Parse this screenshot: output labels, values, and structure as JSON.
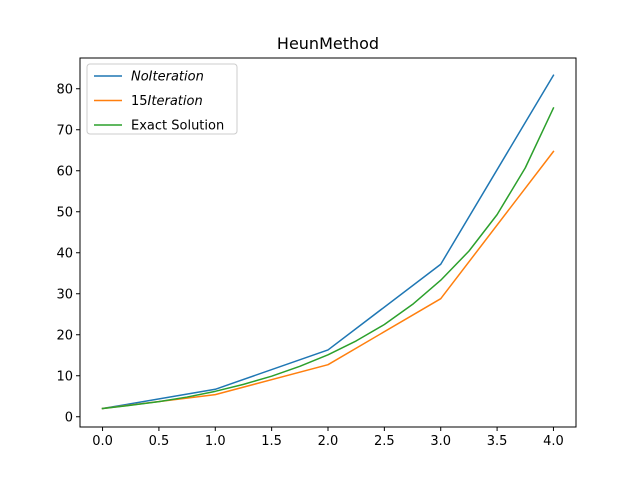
{
  "chart_data": {
    "type": "line",
    "title": "HeunMethod",
    "xlabel": "",
    "ylabel": "",
    "xlim": [
      -0.2,
      4.2
    ],
    "ylim": [
      -2.5,
      87.5
    ],
    "xticks": [
      0.0,
      0.5,
      1.0,
      1.5,
      2.0,
      2.5,
      3.0,
      3.5,
      4.0
    ],
    "xtick_labels": [
      "0.0",
      "0.5",
      "1.0",
      "1.5",
      "2.0",
      "2.5",
      "3.0",
      "3.5",
      "4.0"
    ],
    "yticks": [
      0,
      10,
      20,
      30,
      40,
      50,
      60,
      70,
      80
    ],
    "ytick_labels": [
      "0",
      "10",
      "20",
      "30",
      "40",
      "50",
      "60",
      "70",
      "80"
    ],
    "grid": false,
    "legend_position": "upper-left",
    "series": [
      {
        "name": "NoIteration",
        "legend_main": "",
        "legend_italic": "NoIteration",
        "color": "#1f77b4",
        "x": [
          0,
          1,
          2,
          3,
          4
        ],
        "y": [
          2.0,
          6.7,
          16.3,
          37.2,
          83.3
        ]
      },
      {
        "name": "15Iteration",
        "legend_main": "15",
        "legend_italic": "Iteration",
        "color": "#ff7f0e",
        "x": [
          0,
          1,
          2,
          3,
          4
        ],
        "y": [
          2.0,
          5.4,
          12.7,
          28.8,
          64.7
        ]
      },
      {
        "name": "Exact Solution",
        "legend_main": "Exact Solution",
        "legend_italic": "",
        "color": "#2ca02c",
        "x": [
          0,
          0.25,
          0.5,
          0.75,
          1.0,
          1.25,
          1.5,
          1.75,
          2.0,
          2.25,
          2.5,
          2.75,
          3.0,
          3.25,
          3.5,
          3.75,
          4.0
        ],
        "y": [
          2.0,
          2.8,
          3.7,
          4.8,
          6.2,
          7.9,
          9.9,
          12.3,
          15.1,
          18.5,
          22.5,
          27.4,
          33.3,
          40.4,
          49.3,
          60.7,
          75.3
        ]
      }
    ]
  }
}
